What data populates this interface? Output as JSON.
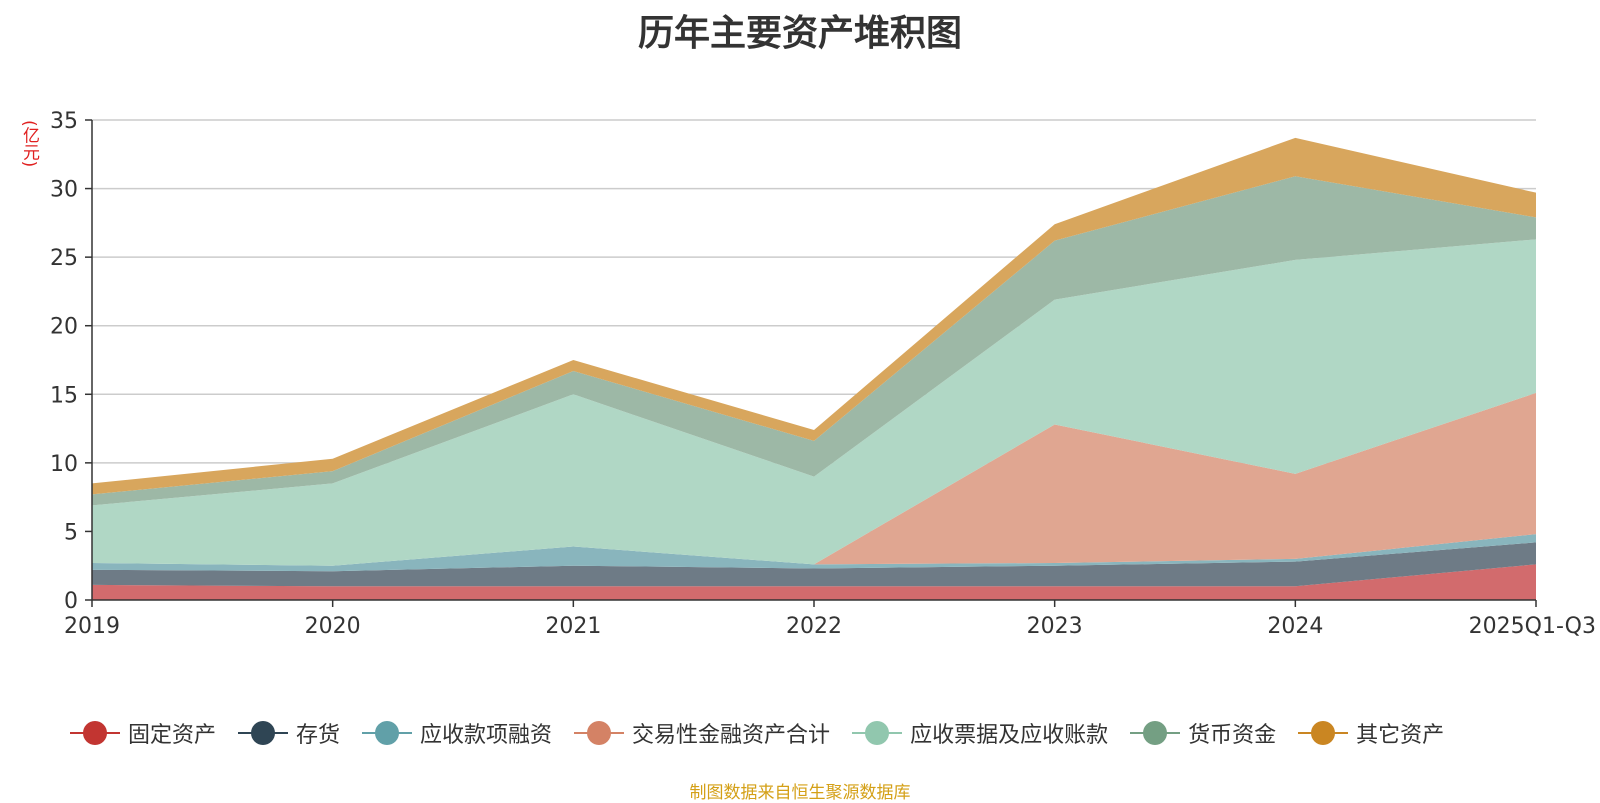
{
  "chart_data": {
    "type": "area",
    "stacked": true,
    "title": "历年主要资产堆积图",
    "ylabel": "(亿元)",
    "xlabel": "",
    "ylim": [
      0,
      35
    ],
    "yticks": [
      0,
      5,
      10,
      15,
      20,
      25,
      30,
      35
    ],
    "categories": [
      "2019",
      "2020",
      "2021",
      "2022",
      "2023",
      "2024",
      "2025Q1-Q3"
    ],
    "grid": true,
    "legend_position": "bottom",
    "series": [
      {
        "name": "固定资产",
        "color": "#c23531",
        "fill": "#d26b6d",
        "values": [
          1.1,
          1.0,
          1.0,
          1.0,
          1.0,
          1.0,
          2.6
        ]
      },
      {
        "name": "存货",
        "color": "#2f4554",
        "fill": "#6e7b86",
        "values": [
          1.1,
          1.1,
          1.5,
          1.3,
          1.5,
          1.8,
          1.6
        ]
      },
      {
        "name": "应收款项融资",
        "color": "#61a0a8",
        "fill": "#89b5bd",
        "values": [
          0.5,
          0.4,
          1.4,
          0.3,
          0.2,
          0.2,
          0.6
        ]
      },
      {
        "name": "交易性金融资产合计",
        "color": "#d48265",
        "fill": "#e0a691",
        "values": [
          0.0,
          0.0,
          0.0,
          0.0,
          10.1,
          6.2,
          10.3
        ]
      },
      {
        "name": "应收票据及应收账款",
        "color": "#91c7ae",
        "fill": "#b0d7c5",
        "values": [
          4.2,
          6.0,
          11.1,
          6.4,
          9.1,
          15.6,
          11.2
        ]
      },
      {
        "name": "货币资金",
        "color": "#749f83",
        "fill": "#9db8a6",
        "values": [
          0.8,
          0.9,
          1.7,
          2.6,
          4.3,
          6.1,
          1.6
        ]
      },
      {
        "name": "其它资产",
        "color": "#ca8622",
        "fill": "#d8a65d",
        "values": [
          0.8,
          0.9,
          0.8,
          0.8,
          1.2,
          2.8,
          1.8
        ]
      }
    ]
  },
  "source_note": "制图数据来自恒生聚源数据库"
}
